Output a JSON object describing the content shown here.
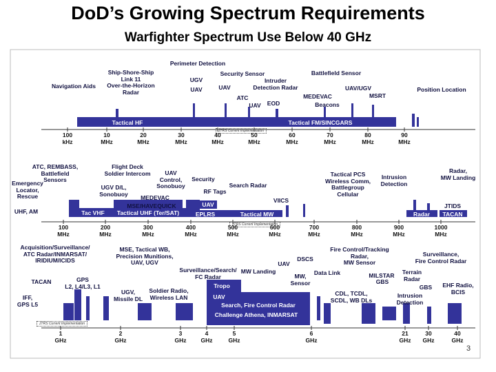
{
  "title": "DoD’s Growing Spectrum Requirements",
  "subtitle": "Warfighter Spectrum Use Below 40 GHz",
  "page_number": "3",
  "panels": [
    {
      "labels": [
        "Perimeter Detection",
        "Ship-Shore-Ship\nLink 11\nOver-the-Horizon\nRadar",
        "Navigation Aids",
        "Security Sensor",
        "Battlefield Sensor",
        "UGV",
        "Intruder\nDetection Radar",
        "UAV",
        "UAV",
        "UAV/UGV",
        "MSRT",
        "Position Location",
        "MEDEVAC",
        "ATC",
        "EOD",
        "UAV",
        "Beacons"
      ],
      "bands": [
        "Tactical HF",
        "Tactical FM/SINCGARS"
      ],
      "note": "JTRS Current Implementation",
      "axis": [
        "100\nkHz",
        "10\nMHz",
        "20\nMHz",
        "30\nMHz",
        "40\nMHz",
        "50\nMHz",
        "60\nMHz",
        "70\nMHz",
        "80\nMHz",
        "90\nMHz"
      ]
    },
    {
      "labels": [
        "ATC, REMBASS,\nBattlefield\nSensors",
        "Emergency\nLocator,\nRescue",
        "Flight Deck\nSoldier Intercom",
        "UGV D/L,\nSonobuoy",
        "UAV\nControl,\nSonobuoy",
        "Security",
        "RF Tags",
        "Search Radar",
        "MEDEVAC",
        "MSE/HAVEQUICK",
        "VIICS",
        "Tactical PCS\nWireless Comm,\nBattlegroup\nCellular",
        "Intrusion\nDetection",
        "Radar,\nMW Landing",
        "UHF, AM",
        "JTIDS"
      ],
      "bands": [
        "Tac VHF",
        "Tactical UHF (Ter/SAT)",
        "EPLRS",
        "UAV",
        "Tactical MW",
        "Radar",
        "TACAN"
      ],
      "note": "JTRS Current Implementation",
      "axis": [
        "100\nMHz",
        "200\nMHz",
        "300\nMHz",
        "400\nMHz",
        "500\nMHz",
        "600\nMHz",
        "700\nMHz",
        "800\nMHz",
        "900\nMHz",
        "1000\nMHz"
      ]
    },
    {
      "labels": [
        "Acquisition/Surveillance/\nATC Radar/INMARSAT/\nIRIDIUM/ICIDS",
        "MSE, Tactical WB,\nPrecision Munitions,\nUAV, UGV",
        "Surveillance/Search/\nFC Radar",
        "MW Landing",
        "UAV",
        "DSCS",
        "Fire Control/Tracking\nRadar,\nMW Sensor",
        "Surveillance,\nFire Control Radar",
        "Data Link",
        "MW,\nSensor",
        "MILSTAR",
        "Terrain\nRadar",
        "GBS",
        "TACAN",
        "GPS\nL2, L4/L3, L1",
        "IFF,\nGPS L5",
        "UGV,\nMissile DL",
        "Soldier Radio,\nWireless LAN",
        "GBS",
        "EHF Radio,\nBCIS",
        "CDL, TCDL,\nSCDL, WB DLs",
        "Intrusion\nDetection"
      ],
      "bands": [
        "Tropo",
        "UAV",
        "Search, Fire Control Radar",
        "Challenge Athena, INMARSAT"
      ],
      "note": "JTRS Current Implementation",
      "axis": [
        "1\nGHz",
        "2\nGHz",
        "3\nGHz",
        "4\nGHz",
        "5\nGHz",
        "6\nGHz",
        "21\nGHz",
        "30\nGHz",
        "40\nGHz"
      ]
    }
  ]
}
